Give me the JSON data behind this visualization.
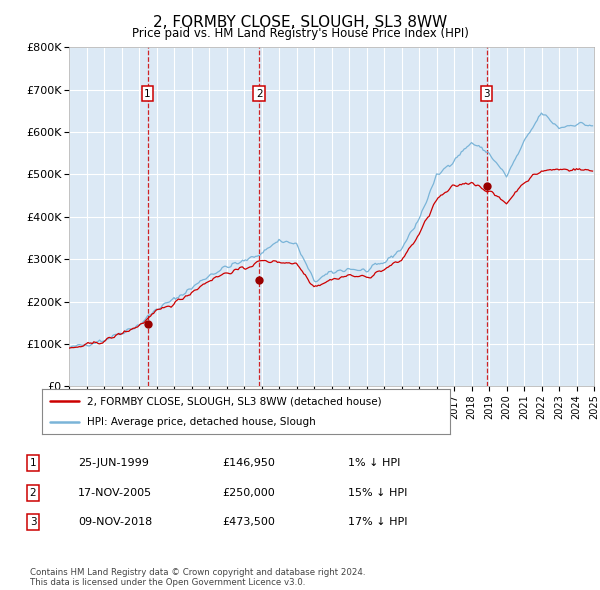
{
  "title": "2, FORMBY CLOSE, SLOUGH, SL3 8WW",
  "subtitle": "Price paid vs. HM Land Registry's House Price Index (HPI)",
  "plot_bg_color": "#dce9f5",
  "grid_color": "#ffffff",
  "ylim": [
    0,
    800000
  ],
  "yticks": [
    0,
    100000,
    200000,
    300000,
    400000,
    500000,
    600000,
    700000,
    800000
  ],
  "ytick_labels": [
    "£0",
    "£100K",
    "£200K",
    "£300K",
    "£400K",
    "£500K",
    "£600K",
    "£700K",
    "£800K"
  ],
  "hpi_color": "#7ab4d8",
  "price_color": "#cc0000",
  "marker_color": "#990000",
  "vline_color": "#cc0000",
  "sale1_date": 1999.49,
  "sale1_price": 146950,
  "sale1_label": "1",
  "sale2_date": 2005.88,
  "sale2_price": 250000,
  "sale2_label": "2",
  "sale3_date": 2018.86,
  "sale3_price": 473500,
  "sale3_label": "3",
  "legend_line1": "2, FORMBY CLOSE, SLOUGH, SL3 8WW (detached house)",
  "legend_line2": "HPI: Average price, detached house, Slough",
  "table_rows": [
    [
      "1",
      "25-JUN-1999",
      "£146,950",
      "1% ↓ HPI"
    ],
    [
      "2",
      "17-NOV-2005",
      "£250,000",
      "15% ↓ HPI"
    ],
    [
      "3",
      "09-NOV-2018",
      "£473,500",
      "17% ↓ HPI"
    ]
  ],
  "footnote": "Contains HM Land Registry data © Crown copyright and database right 2024.\nThis data is licensed under the Open Government Licence v3.0.",
  "xstart": 1995,
  "xend": 2025
}
